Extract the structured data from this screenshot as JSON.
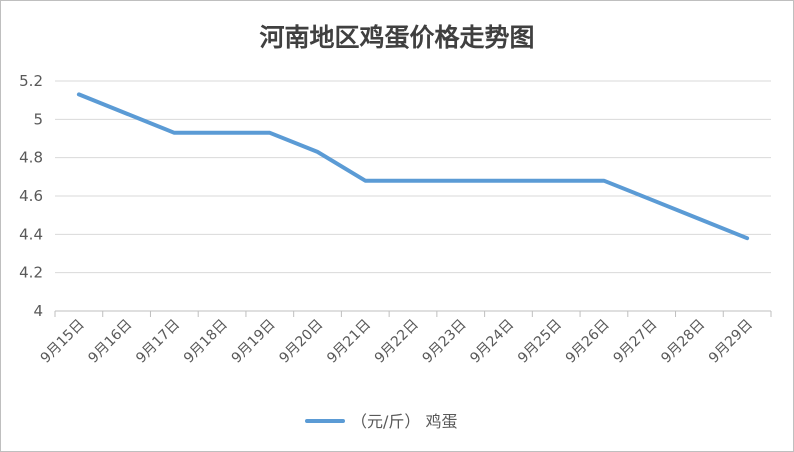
{
  "chart_data": {
    "type": "line",
    "title": "河南地区鸡蛋价格走势图",
    "xlabel": "",
    "ylabel": "",
    "categories": [
      "9月15日",
      "9月16日",
      "9月17日",
      "9月18日",
      "9月19日",
      "9月20日",
      "9月21日",
      "9月22日",
      "9月23日",
      "9月24日",
      "9月25日",
      "9月26日",
      "9月27日",
      "9月28日",
      "9月29日"
    ],
    "ylim": [
      4,
      5.2
    ],
    "yticks": [
      "4",
      "4.2",
      "4.4",
      "4.6",
      "4.8",
      "5",
      "5.2"
    ],
    "grid": true,
    "legend_position": "bottom",
    "series": [
      {
        "name": "（元/斤） 鸡蛋",
        "color": "#5b9bd5",
        "values": [
          5.13,
          5.03,
          4.93,
          4.93,
          4.93,
          4.83,
          4.68,
          4.68,
          4.68,
          4.68,
          4.68,
          4.68,
          4.58,
          4.48,
          4.38
        ]
      }
    ]
  }
}
